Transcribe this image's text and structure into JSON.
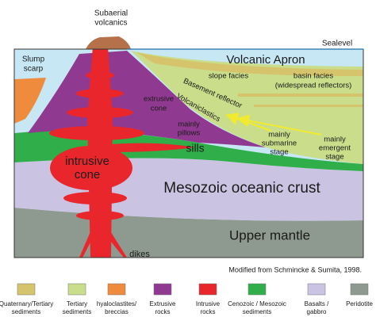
{
  "header": {
    "summit": [
      "Subaerial",
      "volcanics"
    ],
    "sealevel": "Sealevel"
  },
  "labels": {
    "slump": [
      "Slump",
      "scarp"
    ],
    "apron": "Volcanic Apron",
    "slope": "slope facies",
    "basin": [
      "basin  facies",
      "(widespread reflectors)"
    ],
    "basement": "Basement reflector",
    "volcaniclastics": "Volcaniclastics",
    "extrusive": [
      "extrusive",
      "cone"
    ],
    "pillows": [
      "mainly",
      "pillows"
    ],
    "sills": "sills",
    "submarine": [
      "mainly",
      "submarine",
      "stage"
    ],
    "emergent": [
      "mainly",
      "emergent",
      "stage"
    ],
    "intrusive": [
      "intrusive",
      "cone"
    ],
    "crust": "Mesozoic oceanic crust",
    "mantle": "Upper mantle",
    "dikes": "dikes"
  },
  "credit": "Modified from Schmincke & Sumita, 1998.",
  "legend": [
    {
      "label": [
        "Quaternary/Tertiary",
        "sediments"
      ]
    },
    {
      "label": [
        "Tertiary",
        "sediments"
      ]
    },
    {
      "label": [
        "hyaloclastites/",
        "breccias"
      ]
    },
    {
      "label": [
        "Extrusive",
        "rocks"
      ]
    },
    {
      "label": [
        "Intrusive",
        "rocks"
      ]
    },
    {
      "label": [
        "Cenozoic / Mesozoic",
        "sediments"
      ]
    },
    {
      "label": [
        "Basalts /",
        "gabbro"
      ]
    },
    {
      "label": [
        "Peridotite"
      ]
    }
  ]
}
